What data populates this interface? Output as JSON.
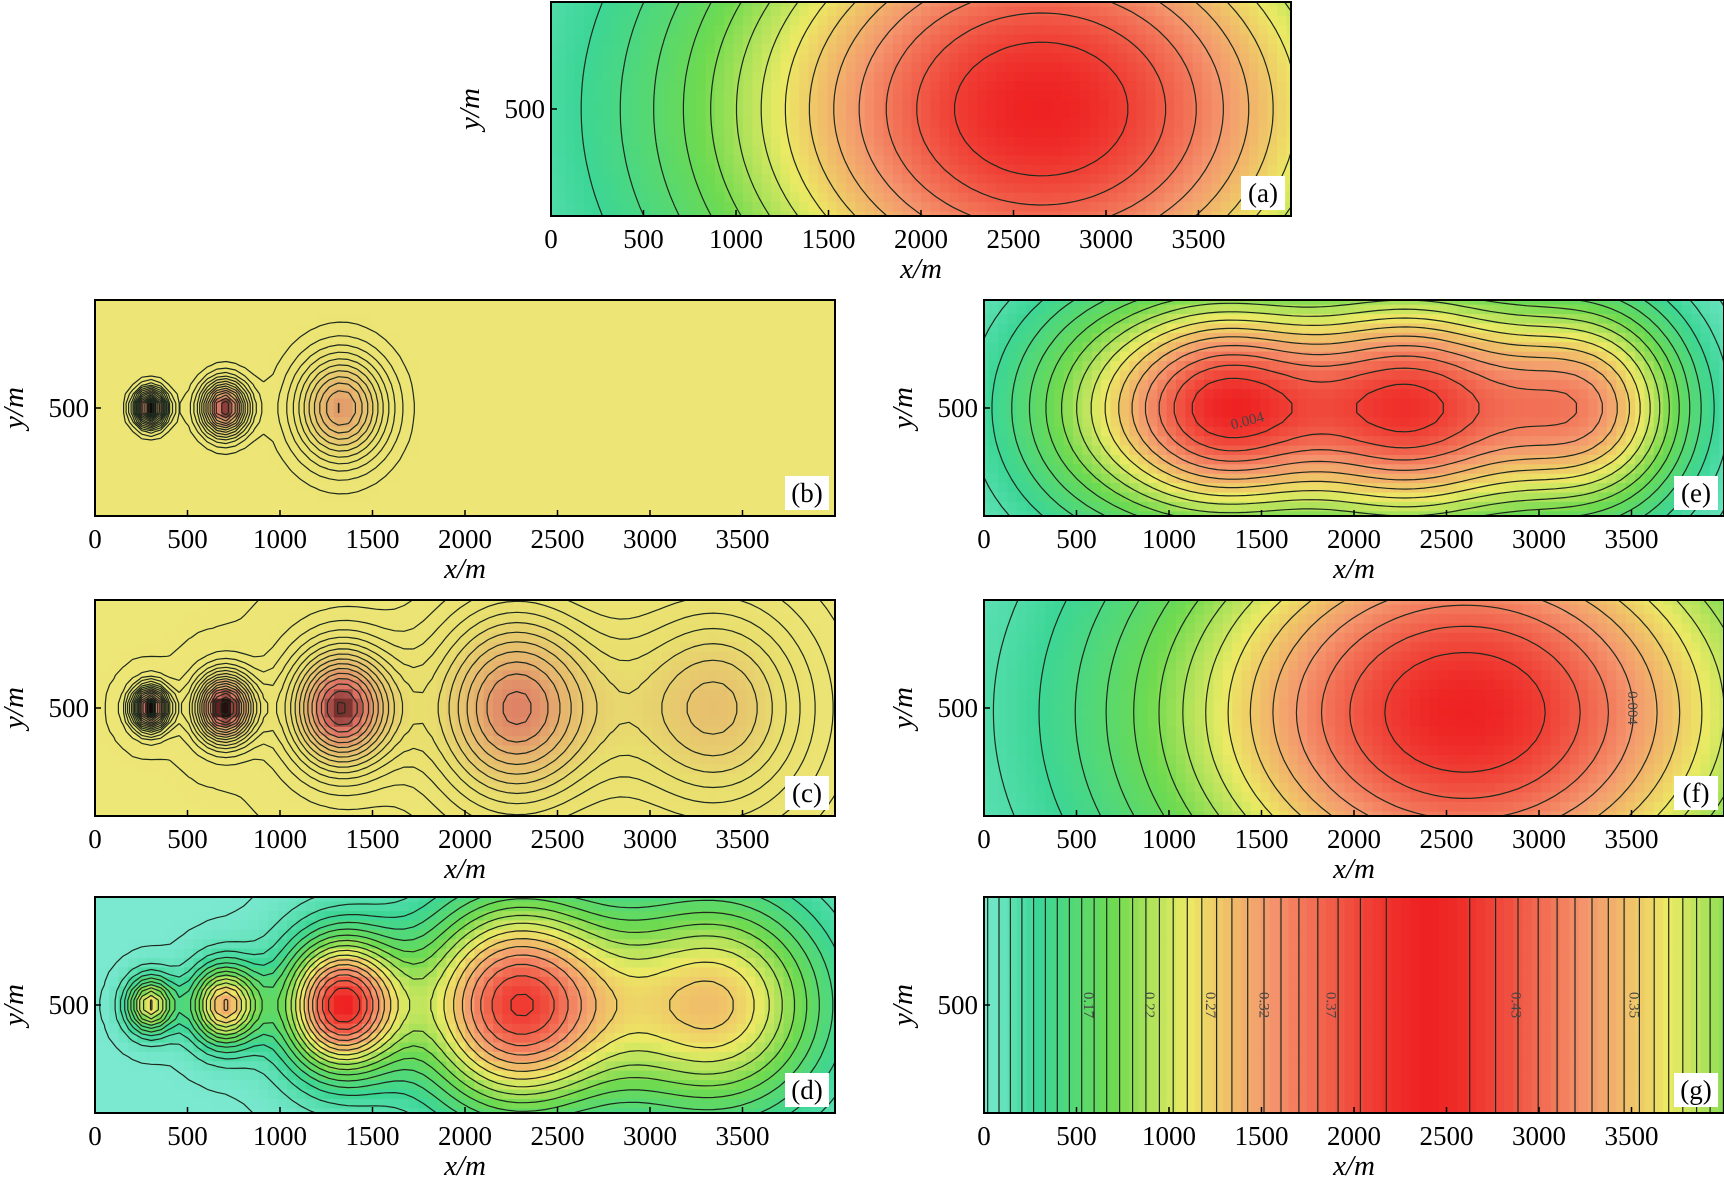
{
  "chart_data": [
    {
      "type": "heatmap",
      "panel": "a",
      "label": "(a)",
      "xlabel": "x/m",
      "ylabel": "y/m",
      "xlim": [
        0,
        4000
      ],
      "xticks": [
        0,
        500,
        1000,
        1500,
        2000,
        2500,
        3000,
        3500
      ],
      "yticks": [
        500
      ],
      "peaks": [
        {
          "x": 2650,
          "y": 500,
          "amp": 1.0,
          "sx": 1350,
          "sy": 900
        }
      ],
      "trend": 0.0,
      "colormap": "cyan-green-yellow-red"
    },
    {
      "type": "heatmap",
      "panel": "b",
      "label": "(b)",
      "xlabel": "x/m",
      "ylabel": "y/m",
      "xlim": [
        0,
        4000
      ],
      "xticks": [
        0,
        500,
        1000,
        1500,
        2000,
        2500,
        3000,
        3500
      ],
      "yticks": [
        500
      ],
      "peaks": [
        {
          "x": 300,
          "y": 500,
          "amp": 0.9,
          "sx": 60,
          "sy": 60
        },
        {
          "x": 700,
          "y": 500,
          "amp": 0.75,
          "sx": 90,
          "sy": 90
        },
        {
          "x": 1330,
          "y": 500,
          "amp": 0.55,
          "sx": 180,
          "sy": 180
        }
      ],
      "trend": 0.0,
      "colormap": "yellow"
    },
    {
      "type": "heatmap",
      "panel": "c",
      "label": "(c)",
      "xlabel": "x/m",
      "ylabel": "y/m",
      "xlim": [
        0,
        4000
      ],
      "xticks": [
        0,
        500,
        1000,
        1500,
        2000,
        2500,
        3000,
        3500
      ],
      "yticks": [
        500
      ],
      "peaks": [
        {
          "x": 300,
          "y": 500,
          "amp": 0.95,
          "sx": 70,
          "sy": 70
        },
        {
          "x": 700,
          "y": 500,
          "amp": 0.9,
          "sx": 110,
          "sy": 110
        },
        {
          "x": 1330,
          "y": 500,
          "amp": 0.8,
          "sx": 200,
          "sy": 200
        },
        {
          "x": 2270,
          "y": 500,
          "amp": 0.65,
          "sx": 330,
          "sy": 330
        },
        {
          "x": 3350,
          "y": 500,
          "amp": 0.45,
          "sx": 380,
          "sy": 360
        }
      ],
      "trend": 0.0,
      "colormap": "yellow"
    },
    {
      "type": "heatmap",
      "panel": "d",
      "label": "(d)",
      "xlabel": "x/m",
      "ylabel": "y/m",
      "xlim": [
        0,
        4000
      ],
      "xticks": [
        0,
        500,
        1000,
        1500,
        2000,
        2500,
        3000,
        3500
      ],
      "yticks": [
        500
      ],
      "peaks": [
        {
          "x": 300,
          "y": 500,
          "amp": 0.6,
          "sx": 90,
          "sy": 90
        },
        {
          "x": 700,
          "y": 500,
          "amp": 0.7,
          "sx": 130,
          "sy": 130
        },
        {
          "x": 1330,
          "y": 500,
          "amp": 0.95,
          "sx": 220,
          "sy": 220
        },
        {
          "x": 2270,
          "y": 500,
          "amp": 0.9,
          "sx": 380,
          "sy": 350
        },
        {
          "x": 3350,
          "y": 500,
          "amp": 0.65,
          "sx": 450,
          "sy": 380
        }
      ],
      "trend": 0.0,
      "colormap": "cyan-green-yellow-red"
    },
    {
      "type": "heatmap",
      "panel": "e",
      "label": "(e)",
      "xlabel": "x/m",
      "ylabel": "y/m",
      "xlim": [
        0,
        4000
      ],
      "xticks": [
        0,
        500,
        1000,
        1500,
        2000,
        2500,
        3000,
        3500
      ],
      "yticks": [
        500
      ],
      "peaks": [
        {
          "x": 700,
          "y": 500,
          "amp": 0.45,
          "sx": 500,
          "sy": 450
        },
        {
          "x": 1330,
          "y": 500,
          "amp": 0.7,
          "sx": 400,
          "sy": 380
        },
        {
          "x": 2300,
          "y": 500,
          "amp": 0.95,
          "sx": 500,
          "sy": 420
        },
        {
          "x": 3300,
          "y": 500,
          "amp": 0.7,
          "sx": 400,
          "sy": 380
        }
      ],
      "trend": 0.0,
      "colormap": "cyan-green-yellow-red",
      "contour_labels": [
        {
          "text": "0.004",
          "x": 1430,
          "y": 420,
          "angle": -15
        }
      ]
    },
    {
      "type": "heatmap",
      "panel": "f",
      "label": "(f)",
      "xlabel": "x/m",
      "ylabel": "y/m",
      "xlim": [
        0,
        4000
      ],
      "xticks": [
        0,
        500,
        1000,
        1500,
        2000,
        2500,
        3000,
        3500
      ],
      "yticks": [
        500
      ],
      "peaks": [
        {
          "x": 2600,
          "y": 480,
          "amp": 1.0,
          "sx": 1250,
          "sy": 800
        }
      ],
      "trend": 0.0,
      "colormap": "cyan-green-yellow-red",
      "contour_labels": [
        {
          "text": "0.004",
          "x": 3480,
          "y": 500,
          "angle": 90
        }
      ]
    },
    {
      "type": "heatmap",
      "panel": "g",
      "label": "(g)",
      "xlabel": "x/m",
      "ylabel": "y/m",
      "xlim": [
        0,
        4000
      ],
      "xticks": [
        0,
        500,
        1000,
        1500,
        2000,
        2500,
        3000,
        3500
      ],
      "yticks": [
        500
      ],
      "profile": "vertical-bands",
      "peak_x": 2400,
      "colormap": "cyan-green-yellow-red",
      "contour_labels": [
        {
          "text": "0.17",
          "x": 540,
          "y": 500,
          "angle": 90
        },
        {
          "text": "0.22",
          "x": 870,
          "y": 500,
          "angle": 90
        },
        {
          "text": "0.27",
          "x": 1200,
          "y": 500,
          "angle": 90
        },
        {
          "text": "0.32",
          "x": 1490,
          "y": 500,
          "angle": 90
        },
        {
          "text": "0.37",
          "x": 1850,
          "y": 500,
          "angle": 90
        },
        {
          "text": "0.43",
          "x": 2850,
          "y": 500,
          "angle": 90
        },
        {
          "text": "0.35",
          "x": 3490,
          "y": 500,
          "angle": 90
        }
      ]
    }
  ]
}
